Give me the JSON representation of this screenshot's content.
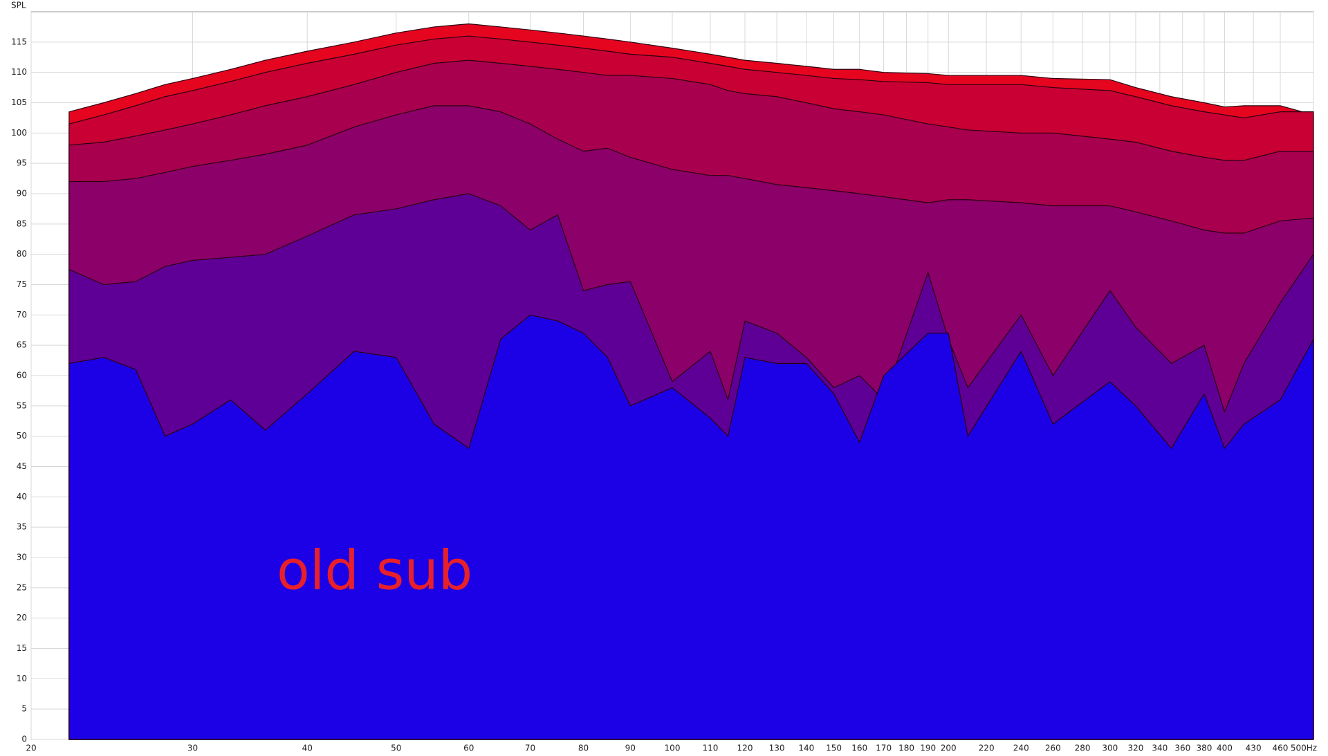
{
  "chart_data": {
    "type": "area",
    "y_label": "SPL",
    "annotation": "old sub",
    "x_scale": "log",
    "grid": true,
    "x": [
      22,
      24,
      26,
      28,
      30,
      33,
      36,
      40,
      45,
      50,
      55,
      60,
      65,
      70,
      75,
      80,
      85,
      90,
      100,
      110,
      115,
      120,
      130,
      140,
      150,
      160,
      170,
      190,
      200,
      210,
      240,
      260,
      300,
      320,
      350,
      380,
      400,
      420,
      460,
      500
    ],
    "series": [
      {
        "color": "#e6051f",
        "values": [
          103.5,
          105,
          106.5,
          108,
          109,
          110.5,
          112,
          113.5,
          115,
          116.5,
          117.5,
          118,
          117.5,
          117,
          116.5,
          116,
          115.5,
          115,
          114,
          113,
          112.5,
          112,
          111.5,
          111,
          110.5,
          110.5,
          110,
          109.8,
          109.5,
          109.5,
          109.5,
          109,
          108.8,
          107.5,
          106,
          105,
          104.3,
          104.5,
          104.5,
          103
        ]
      },
      {
        "color": "#c80033",
        "values": [
          101.5,
          103,
          104.5,
          106,
          107,
          108.5,
          110,
          111.5,
          113,
          114.5,
          115.5,
          116,
          115.5,
          115,
          114.5,
          114,
          113.5,
          113,
          112.5,
          111.5,
          111,
          110.5,
          110,
          109.5,
          109,
          108.8,
          108.5,
          108.3,
          108,
          108,
          108,
          107.5,
          107,
          106,
          104.5,
          103.5,
          103,
          102.5,
          103.5,
          103.5
        ]
      },
      {
        "color": "#a8004f",
        "values": [
          98,
          98.5,
          99.5,
          100.5,
          101.5,
          103,
          104.5,
          106,
          108,
          110,
          111.5,
          112,
          111.5,
          111,
          110.5,
          110,
          109.5,
          109.5,
          109,
          108,
          107,
          106.5,
          106,
          105,
          104,
          103.5,
          103,
          101.5,
          101,
          100.5,
          100,
          100,
          99,
          98.5,
          97,
          96,
          95.5,
          95.5,
          97,
          97
        ]
      },
      {
        "color": "#8b0069",
        "values": [
          92,
          92,
          92.5,
          93.5,
          94.5,
          95.5,
          96.5,
          98,
          101,
          103,
          104.5,
          104.5,
          103.5,
          101.5,
          99,
          97,
          97.5,
          96,
          94,
          93,
          93,
          92.5,
          91.5,
          91,
          90.5,
          90,
          89.5,
          88.5,
          89,
          89,
          88.5,
          88,
          88,
          87,
          85.5,
          84,
          83.5,
          83.5,
          85.5,
          86
        ]
      },
      {
        "color": "#5e0096",
        "values": [
          77.5,
          75,
          75.5,
          78,
          79,
          79.5,
          80,
          83,
          86.5,
          87.5,
          89,
          90,
          88,
          84,
          86.5,
          74,
          75,
          75.5,
          59,
          64,
          56,
          69,
          67,
          63,
          58,
          60,
          56,
          77,
          66,
          58,
          70,
          60,
          74,
          68,
          62,
          65,
          54,
          62,
          72,
          80
        ]
      },
      {
        "color": "#1c00e6",
        "values": [
          62,
          63,
          61,
          50,
          52,
          56,
          51,
          57,
          64,
          63,
          52,
          48,
          66,
          70,
          69,
          67,
          63,
          55,
          58,
          53,
          50,
          63,
          62,
          62,
          57,
          49,
          60,
          67,
          67,
          50,
          64,
          52,
          59,
          55,
          48,
          57,
          48,
          52,
          56,
          66
        ]
      }
    ],
    "xlim": [
      20,
      500
    ],
    "ylim": [
      0,
      120
    ],
    "xticks": [
      20,
      30,
      40,
      50,
      60,
      70,
      80,
      90,
      100,
      110,
      120,
      130,
      140,
      150,
      160,
      170,
      180,
      190,
      200,
      220,
      240,
      260,
      280,
      300,
      320,
      340,
      360,
      380,
      400,
      430,
      460,
      {
        "value": 500,
        "label": "500Hz"
      }
    ],
    "yticks": [
      0,
      5,
      10,
      15,
      20,
      25,
      30,
      35,
      40,
      45,
      50,
      55,
      60,
      65,
      70,
      75,
      80,
      85,
      90,
      95,
      100,
      105,
      110,
      115
    ]
  }
}
